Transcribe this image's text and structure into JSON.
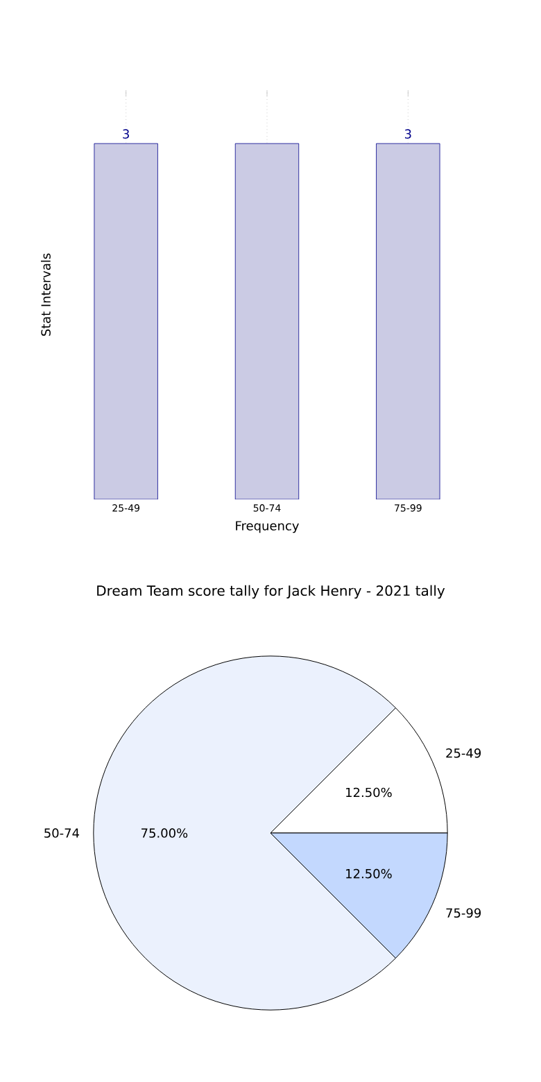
{
  "chart_data": [
    {
      "type": "bar",
      "xlabel": "Frequency",
      "ylabel": "Stat Intervals",
      "categories": [
        "25-49",
        "50-74",
        "75-99"
      ],
      "values": [
        3,
        3,
        3
      ],
      "value_labels": [
        "3",
        null,
        "3"
      ],
      "color": "#cbcbe4",
      "grid": "x"
    },
    {
      "type": "pie",
      "title": "Dream Team score tally for Jack Henry - 2021 tally",
      "categories": [
        "25-49",
        "50-74",
        "75-99"
      ],
      "values": [
        12.5,
        75,
        12.5
      ],
      "value_labels": [
        "12.50%",
        "75.00%",
        "12.50%"
      ],
      "colors": [
        "#ffffff",
        "#ebf1fd",
        "#c3d8fe"
      ]
    }
  ]
}
